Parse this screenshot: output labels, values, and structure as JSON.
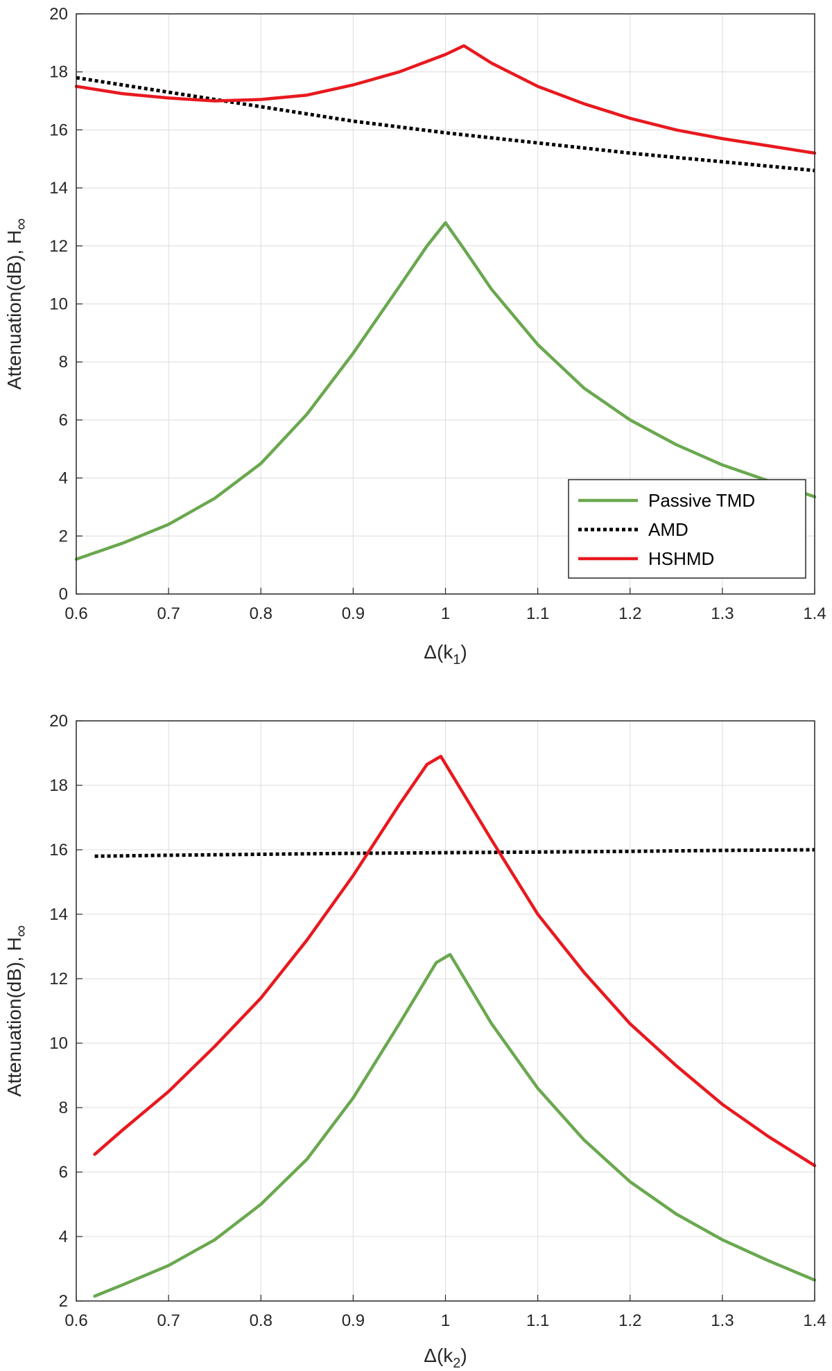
{
  "chart_data": [
    {
      "type": "line",
      "xlabel": "Δ(k",
      "xlabel_sub": "1",
      "xlabel_tail": ")",
      "ylabel": "Attenuation(dB), H",
      "ylabel_sub": "∞",
      "xlim": [
        0.6,
        1.4
      ],
      "ylim": [
        0,
        20
      ],
      "xticks": [
        "0.6",
        "0.7",
        "0.8",
        "0.9",
        "1",
        "1.1",
        "1.2",
        "1.3",
        "1.4"
      ],
      "yticks": [
        "0",
        "2",
        "4",
        "6",
        "8",
        "10",
        "12",
        "14",
        "16",
        "18",
        "20"
      ],
      "grid": true,
      "legend_position": "bottom-right",
      "series": [
        {
          "name": "Passive TMD",
          "color": "#6aa84f",
          "style": "solid",
          "x": [
            0.6,
            0.65,
            0.7,
            0.75,
            0.8,
            0.85,
            0.9,
            0.95,
            0.98,
            1.0,
            1.02,
            1.05,
            1.1,
            1.15,
            1.2,
            1.25,
            1.3,
            1.35,
            1.4
          ],
          "y": [
            1.2,
            1.75,
            2.4,
            3.3,
            4.5,
            6.2,
            8.3,
            10.6,
            12.0,
            12.8,
            11.9,
            10.5,
            8.6,
            7.1,
            6.0,
            5.15,
            4.45,
            3.9,
            3.35
          ]
        },
        {
          "name": "AMD",
          "color": "#000000",
          "style": "dotted",
          "x": [
            0.6,
            0.7,
            0.8,
            0.9,
            1.0,
            1.1,
            1.2,
            1.3,
            1.4
          ],
          "y": [
            17.8,
            17.3,
            16.8,
            16.3,
            15.9,
            15.55,
            15.2,
            14.9,
            14.6
          ]
        },
        {
          "name": "HSHMD",
          "color": "#e8191f",
          "style": "solid",
          "x": [
            0.6,
            0.65,
            0.7,
            0.75,
            0.8,
            0.85,
            0.9,
            0.95,
            1.0,
            1.02,
            1.05,
            1.1,
            1.15,
            1.2,
            1.25,
            1.3,
            1.35,
            1.4
          ],
          "y": [
            17.5,
            17.25,
            17.1,
            17.0,
            17.05,
            17.2,
            17.55,
            18.0,
            18.6,
            18.9,
            18.3,
            17.5,
            16.9,
            16.4,
            16.0,
            15.7,
            15.45,
            15.2
          ]
        }
      ]
    },
    {
      "type": "line",
      "xlabel": "Δ(k",
      "xlabel_sub": "2",
      "xlabel_tail": ")",
      "ylabel": "Attenuation(dB), H",
      "ylabel_sub": "∞",
      "xlim": [
        0.6,
        1.4
      ],
      "ylim": [
        2,
        20
      ],
      "xticks": [
        "0.6",
        "0.7",
        "0.8",
        "0.9",
        "1",
        "1.1",
        "1.2",
        "1.3",
        "1.4"
      ],
      "yticks": [
        "2",
        "4",
        "6",
        "8",
        "10",
        "12",
        "14",
        "16",
        "18",
        "20"
      ],
      "grid": true,
      "series": [
        {
          "name": "Passive TMD",
          "color": "#6aa84f",
          "style": "solid",
          "x": [
            0.62,
            0.65,
            0.7,
            0.75,
            0.8,
            0.85,
            0.9,
            0.95,
            0.99,
            1.005,
            1.05,
            1.1,
            1.15,
            1.2,
            1.25,
            1.3,
            1.35,
            1.4
          ],
          "y": [
            2.15,
            2.5,
            3.1,
            3.9,
            5.0,
            6.4,
            8.3,
            10.6,
            12.5,
            12.75,
            10.6,
            8.6,
            7.0,
            5.7,
            4.7,
            3.9,
            3.25,
            2.65
          ]
        },
        {
          "name": "AMD",
          "color": "#000000",
          "style": "dotted",
          "x": [
            0.62,
            0.7,
            0.8,
            0.9,
            1.0,
            1.1,
            1.2,
            1.3,
            1.4
          ],
          "y": [
            15.8,
            15.83,
            15.86,
            15.89,
            15.91,
            15.93,
            15.95,
            15.98,
            16.0
          ]
        },
        {
          "name": "HSHMD",
          "color": "#e8191f",
          "style": "solid",
          "x": [
            0.62,
            0.65,
            0.7,
            0.75,
            0.8,
            0.85,
            0.9,
            0.95,
            0.98,
            0.995,
            1.05,
            1.1,
            1.15,
            1.2,
            1.25,
            1.3,
            1.35,
            1.4
          ],
          "y": [
            6.55,
            7.3,
            8.5,
            9.9,
            11.4,
            13.2,
            15.2,
            17.4,
            18.65,
            18.9,
            16.3,
            14.0,
            12.2,
            10.6,
            9.3,
            8.1,
            7.1,
            6.2
          ]
        }
      ]
    }
  ]
}
